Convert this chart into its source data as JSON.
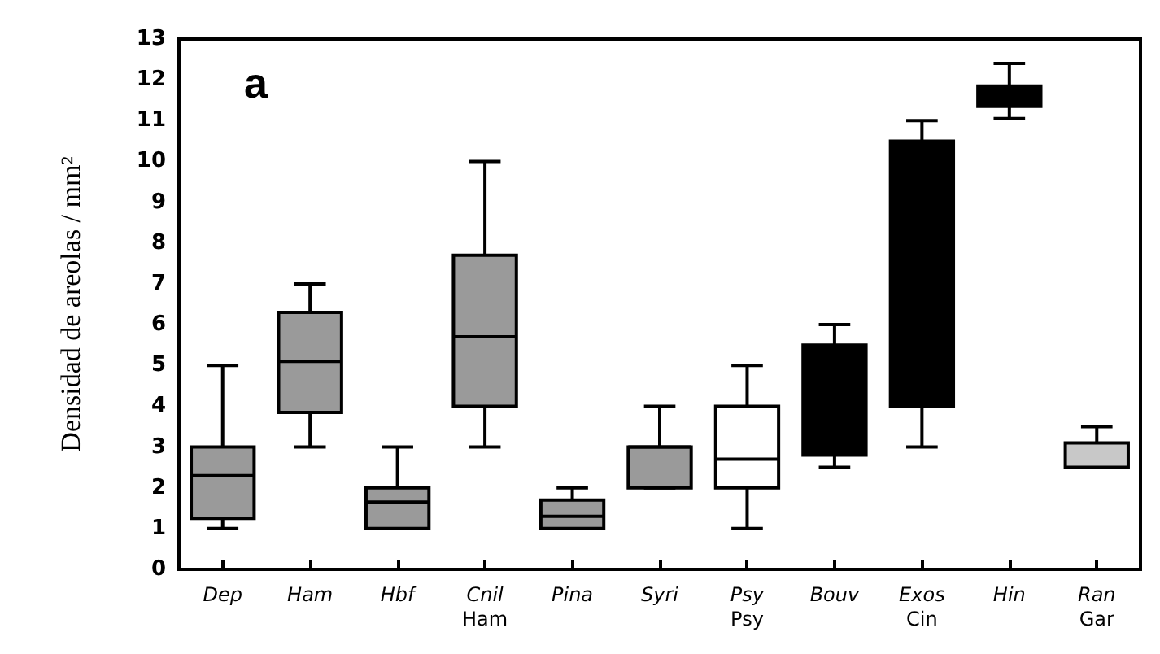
{
  "chart_data": {
    "type": "box",
    "ylabel": "Densidad de areolas / mm²",
    "annotations": [
      "a"
    ],
    "categories": [
      "Dep",
      "Ham",
      "Hbf",
      "Cnil\nHam",
      "Pina",
      "Syri",
      "Psy\nPsy",
      "Bouv",
      "Exos\nCin",
      "Hin",
      "Ran\nGar"
    ],
    "boxes": [
      {
        "low": 1,
        "q1": 1.25,
        "median": 2.3,
        "q3": 3,
        "high": 5
      },
      {
        "low": 3,
        "q1": 3.85,
        "median": 5.1,
        "q3": 6.3,
        "high": 7
      },
      {
        "low": 1,
        "q1": 1,
        "median": 1.65,
        "q3": 2,
        "high": 3
      },
      {
        "low": 3,
        "q1": 4,
        "median": 5.7,
        "q3": 7.7,
        "high": 10
      },
      {
        "low": 1,
        "q1": 1,
        "median": 1.3,
        "q3": 1.7,
        "high": 2
      },
      {
        "low": 2,
        "q1": 2,
        "median": 3,
        "q3": 3,
        "high": 4
      },
      {
        "low": 1,
        "q1": 2,
        "median": 2.7,
        "q3": 4,
        "high": 5
      },
      {
        "low": 2.5,
        "q1": 2.8,
        "median": null,
        "q3": 5.5,
        "high": 6
      },
      {
        "low": 3,
        "q1": 4,
        "median": null,
        "q3": 10.5,
        "high": 11
      },
      {
        "low": 11.05,
        "q1": 11.35,
        "median": null,
        "q3": 11.85,
        "high": 12.4
      },
      {
        "low": 2.5,
        "q1": 2.5,
        "median": null,
        "q3": 3.1,
        "high": 3.5
      }
    ],
    "colors": [
      "#9a9a9a",
      "#9a9a9a",
      "#9a9a9a",
      "#9a9a9a",
      "#9a9a9a",
      "#9a9a9a",
      "#ffffff",
      "#000000",
      "#000000",
      "#000000",
      "#c8c8c8"
    ],
    "ylim": [
      0,
      13
    ],
    "yticks": [
      0,
      1,
      2,
      3,
      4,
      5,
      6,
      7,
      8,
      9,
      10,
      11,
      12,
      13
    ],
    "grid": false
  }
}
